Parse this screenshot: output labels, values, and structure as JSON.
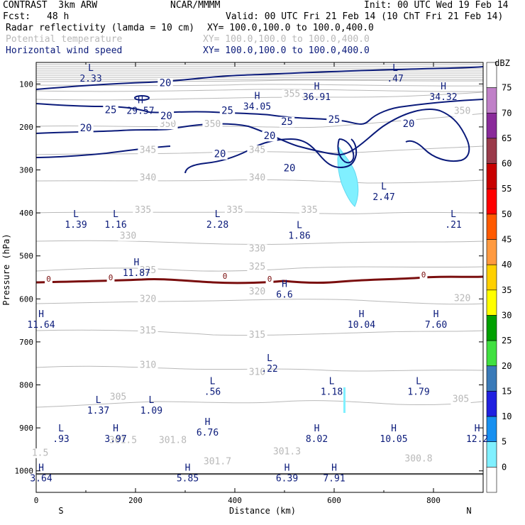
{
  "header": {
    "model": "CONTRAST  3km ARW",
    "center": "NCAR/MMMM",
    "init": "Init: 00 UTC Wed 19 Feb 14",
    "fcst_label": "Fcst:",
    "fcst_value": "48 h",
    "valid": "Valid: 00 UTC Fri 21 Feb 14 (10 ChT Fri 21 Feb 14)",
    "field1_name": "Radar reflectivity (lamda = 10 cm)",
    "field1_xy": "XY= 100.0,100.0 to 100.0,400.0",
    "field2_name": "Potential temperature",
    "field2_xy": "XY= 100.0,100.0 to 100.0,400.0",
    "field3_name": "Horizontal wind speed",
    "field3_xy": "XY= 100.0,100.0 to 100.0,400.0"
  },
  "colors": {
    "wind": "#0a1a7a",
    "theta": "#b8b8b8",
    "zero_isotherm": "#7a0e0e",
    "radar": "#80f0ff"
  },
  "chart_data": {
    "type": "cross-section",
    "xlabel": "Distance (km)",
    "ylabel": "Pressure (hPa)",
    "xlim": [
      0,
      900
    ],
    "ylim": [
      1050,
      50
    ],
    "x_ticks": [
      "0",
      "200",
      "400",
      "600",
      "800"
    ],
    "y_ticks": [
      "100",
      "200",
      "300",
      "400",
      "500",
      "600",
      "700",
      "800",
      "900",
      "1000"
    ],
    "x_ends": [
      "S",
      "N"
    ],
    "colorbar": {
      "unit": "dBZ",
      "levels": [
        "75",
        "70",
        "65",
        "60",
        "55",
        "50",
        "45",
        "40",
        "35",
        "30",
        "25",
        "20",
        "15",
        "10",
        "5",
        "0"
      ],
      "colors": [
        "#ffffff",
        "#c080c8",
        "#8a2a9a",
        "#9a3a4a",
        "#c80000",
        "#ff0000",
        "#ff5a00",
        "#ff9a40",
        "#ffd000",
        "#ffff00",
        "#00a000",
        "#40e040",
        "#3a7ab8",
        "#2020e0",
        "#1890f0",
        "#80f0ff",
        "#ffffff"
      ]
    },
    "theta_labels": [
      {
        "text": "355",
        "x": 515,
        "p": 130
      },
      {
        "text": "350",
        "x": 265,
        "p": 200
      },
      {
        "text": "350",
        "x": 355,
        "p": 200
      },
      {
        "text": "350",
        "x": 858,
        "p": 170
      },
      {
        "text": "345",
        "x": 225,
        "p": 260
      },
      {
        "text": "345",
        "x": 445,
        "p": 260
      },
      {
        "text": "340",
        "x": 225,
        "p": 325
      },
      {
        "text": "340",
        "x": 445,
        "p": 325
      },
      {
        "text": "335",
        "x": 215,
        "p": 400
      },
      {
        "text": "335",
        "x": 400,
        "p": 400
      },
      {
        "text": "335",
        "x": 550,
        "p": 400
      },
      {
        "text": "330",
        "x": 185,
        "p": 460
      },
      {
        "text": "330",
        "x": 445,
        "p": 490
      },
      {
        "text": "325",
        "x": 225,
        "p": 540
      },
      {
        "text": "325",
        "x": 445,
        "p": 532
      },
      {
        "text": "320",
        "x": 225,
        "p": 607
      },
      {
        "text": "320",
        "x": 445,
        "p": 590
      },
      {
        "text": "320",
        "x": 858,
        "p": 605
      },
      {
        "text": "315",
        "x": 225,
        "p": 680
      },
      {
        "text": "315",
        "x": 445,
        "p": 690
      },
      {
        "text": "310",
        "x": 225,
        "p": 760
      },
      {
        "text": "310",
        "x": 445,
        "p": 777
      },
      {
        "text": "305",
        "x": 165,
        "p": 835
      },
      {
        "text": "305",
        "x": 855,
        "p": 840
      },
      {
        "text": "301.5",
        "x": 175,
        "p": 935
      },
      {
        "text": "301.8",
        "x": 275,
        "p": 935
      },
      {
        "text": "301.7",
        "x": 365,
        "p": 985
      },
      {
        "text": "301.3",
        "x": 505,
        "p": 962
      },
      {
        "text": "300.8",
        "x": 770,
        "p": 978
      },
      {
        "text": "1.5",
        "x": 8,
        "p": 965
      }
    ],
    "wind_labels": [
      {
        "text": "20",
        "x": 260,
        "p": 105
      },
      {
        "text": "25",
        "x": 150,
        "p": 168
      },
      {
        "text": "25",
        "x": 385,
        "p": 170
      },
      {
        "text": "25",
        "x": 505,
        "p": 195
      },
      {
        "text": "25",
        "x": 600,
        "p": 190
      },
      {
        "text": "20",
        "x": 100,
        "p": 210
      },
      {
        "text": "20",
        "x": 262,
        "p": 182
      },
      {
        "text": "20",
        "x": 470,
        "p": 228
      },
      {
        "text": "20",
        "x": 750,
        "p": 200
      },
      {
        "text": "20",
        "x": 370,
        "p": 270
      },
      {
        "text": "20",
        "x": 510,
        "p": 303
      }
    ],
    "wind_extrema": [
      {
        "type": "L",
        "value": "2.33",
        "x": 110,
        "p": 70
      },
      {
        "type": "L",
        "value": ".47",
        "x": 723,
        "p": 70
      },
      {
        "type": "H",
        "value": "29.57",
        "x": 210,
        "p": 145
      },
      {
        "type": "H",
        "value": "34.05",
        "x": 445,
        "p": 135
      },
      {
        "type": "H",
        "value": "36.91",
        "x": 565,
        "p": 113
      },
      {
        "type": "H",
        "value": "34.32",
        "x": 820,
        "p": 113
      },
      {
        "type": "L",
        "value": "2.47",
        "x": 700,
        "p": 345
      },
      {
        "type": "L",
        "value": "1.39",
        "x": 80,
        "p": 410
      },
      {
        "type": "L",
        "value": "1.16",
        "x": 160,
        "p": 410
      },
      {
        "type": "L",
        "value": "2.28",
        "x": 365,
        "p": 410
      },
      {
        "type": "L",
        "value": "1.86",
        "x": 530,
        "p": 435
      },
      {
        "type": "L",
        "value": ".21",
        "x": 840,
        "p": 410
      },
      {
        "type": "H",
        "value": "11.87",
        "x": 202,
        "p": 522
      },
      {
        "type": "H",
        "value": "6.6",
        "x": 500,
        "p": 572
      },
      {
        "type": "H",
        "value": "11.64",
        "x": 10,
        "p": 642
      },
      {
        "type": "H",
        "value": "10.04",
        "x": 655,
        "p": 642
      },
      {
        "type": "H",
        "value": "7.60",
        "x": 805,
        "p": 642
      },
      {
        "type": "L",
        "value": ".22",
        "x": 470,
        "p": 745
      },
      {
        "type": "L",
        "value": ".56",
        "x": 355,
        "p": 798
      },
      {
        "type": "L",
        "value": "1.18",
        "x": 595,
        "p": 798
      },
      {
        "type": "L",
        "value": "1.79",
        "x": 770,
        "p": 798
      },
      {
        "type": "L",
        "value": "1.37",
        "x": 125,
        "p": 842
      },
      {
        "type": "L",
        "value": "1.09",
        "x": 232,
        "p": 842
      },
      {
        "type": "L",
        "value": ".93",
        "x": 50,
        "p": 908
      },
      {
        "type": "H",
        "value": "3.97",
        "x": 160,
        "p": 908
      },
      {
        "type": "H",
        "value": "6.76",
        "x": 345,
        "p": 893
      },
      {
        "type": "H",
        "value": "8.02",
        "x": 565,
        "p": 908
      },
      {
        "type": "H",
        "value": "10.05",
        "x": 720,
        "p": 908
      },
      {
        "type": "H",
        "value": "12.2",
        "x": 888,
        "p": 908
      },
      {
        "type": "H",
        "value": "3.64",
        "x": 10,
        "p": 1000
      },
      {
        "type": "H",
        "value": "5.85",
        "x": 305,
        "p": 1000
      },
      {
        "type": "H",
        "value": "6.39",
        "x": 505,
        "p": 1000
      },
      {
        "type": "H",
        "value": "7.91",
        "x": 600,
        "p": 1000
      }
    ],
    "zero_labels": [
      {
        "text": "0",
        "x": 25,
        "p": 560
      },
      {
        "text": "0",
        "x": 150,
        "p": 557
      },
      {
        "text": "0",
        "x": 380,
        "p": 553
      },
      {
        "text": "0",
        "x": 470,
        "p": 560
      },
      {
        "text": "0",
        "x": 780,
        "p": 550
      }
    ]
  }
}
